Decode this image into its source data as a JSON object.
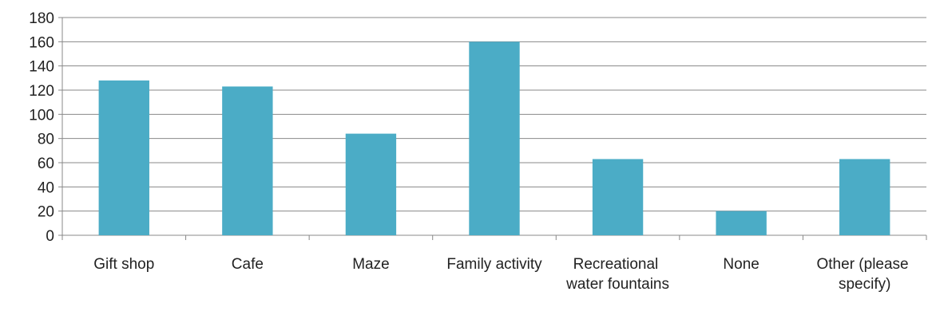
{
  "chart_data": {
    "type": "bar",
    "categories": [
      "Gift shop",
      "Cafe",
      "Maze",
      "Family activity",
      "Recreational water fountains",
      "None",
      "Other (please specify)"
    ],
    "values": [
      128,
      123,
      84,
      160,
      63,
      20,
      63
    ],
    "color": "#4bacc6",
    "ylim": [
      0,
      180
    ],
    "yticks": [
      0,
      20,
      40,
      60,
      80,
      100,
      120,
      140,
      160,
      180
    ],
    "grid": true
  }
}
